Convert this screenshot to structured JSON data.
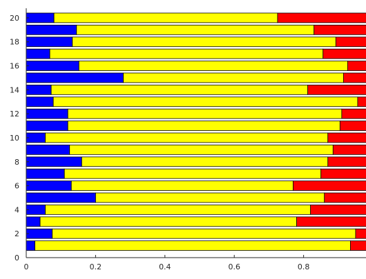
{
  "chart_data": {
    "type": "bar",
    "orientation": "horizontal",
    "stacked": true,
    "title": "",
    "xlabel": "",
    "ylabel": "",
    "xlim": [
      0,
      0.98
    ],
    "ylim": [
      0,
      20.8
    ],
    "x_ticks": [
      "0",
      "0.2",
      "0.4",
      "0.6",
      "0.8"
    ],
    "y_ticks": [
      "0",
      "2",
      "4",
      "6",
      "8",
      "10",
      "12",
      "14",
      "16",
      "18",
      "20"
    ],
    "grid": false,
    "legend": "none",
    "categories": [
      1,
      2,
      3,
      4,
      5,
      6,
      7,
      8,
      9,
      10,
      11,
      12,
      13,
      14,
      15,
      16,
      17,
      18,
      19,
      20
    ],
    "series": [
      {
        "color": "#0000ff",
        "values": [
          0.025,
          0.075,
          0.04,
          0.055,
          0.2,
          0.13,
          0.11,
          0.16,
          0.125,
          0.055,
          0.12,
          0.12,
          0.078,
          0.072,
          0.28,
          0.152,
          0.068,
          0.133,
          0.145,
          0.08
        ]
      },
      {
        "color": "#ffff00",
        "values": [
          0.91,
          0.875,
          0.74,
          0.765,
          0.66,
          0.64,
          0.74,
          0.71,
          0.76,
          0.815,
          0.785,
          0.79,
          0.878,
          0.74,
          0.635,
          0.775,
          0.788,
          0.76,
          0.685,
          0.645
        ]
      },
      {
        "color": "#ff0000",
        "values": [
          0.065,
          0.05,
          0.22,
          0.18,
          0.14,
          0.23,
          0.15,
          0.13,
          0.115,
          0.13,
          0.095,
          0.09,
          0.044,
          0.188,
          0.085,
          0.073,
          0.144,
          0.107,
          0.17,
          0.275
        ]
      }
    ]
  }
}
